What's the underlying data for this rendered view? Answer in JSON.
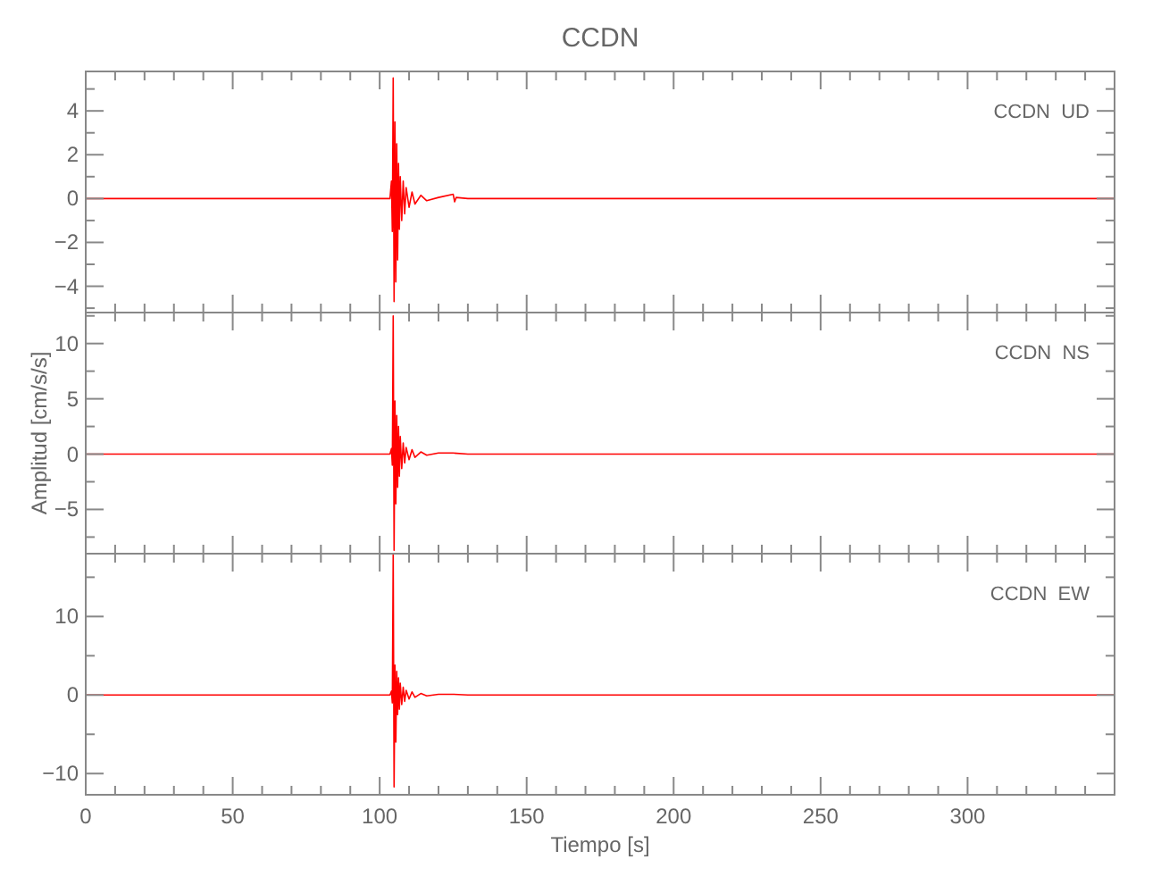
{
  "chart_data": [
    {
      "type": "line",
      "title": "CCDN",
      "annotations": [
        "CCDN  UD"
      ],
      "tick_labels": "y",
      "xlim": [
        0,
        350
      ],
      "ylim": [
        -5.2,
        5.8
      ],
      "x": [
        0,
        50,
        103.5,
        104,
        104.3,
        104.6,
        104.9,
        105.2,
        105.5,
        105.8,
        106.1,
        106.4,
        106.7,
        107,
        107.5,
        108,
        108.5,
        109,
        110,
        111,
        112,
        114,
        116,
        120,
        125,
        125.5,
        126,
        130,
        200,
        350
      ],
      "series": [
        {
          "color": "#ff0000",
          "values": [
            0,
            0,
            0,
            0.8,
            -1.5,
            5.5,
            -4.7,
            3.5,
            -3.8,
            2.5,
            -2.8,
            1.6,
            -1.4,
            1,
            -1,
            0.8,
            -0.7,
            0.5,
            -0.4,
            0.3,
            -0.25,
            0.15,
            -0.1,
            0.05,
            0.2,
            -0.15,
            0.05,
            0,
            0,
            0
          ]
        }
      ],
      "xticks": [
        0,
        {
          "value": 10,
          "label": null
        },
        {
          "value": 20,
          "label": null
        },
        {
          "value": 30,
          "label": null
        },
        {
          "value": 40,
          "label": null
        },
        50,
        {
          "value": 60,
          "label": null
        },
        {
          "value": 70,
          "label": null
        },
        {
          "value": 80,
          "label": null
        },
        {
          "value": 90,
          "label": null
        },
        100,
        {
          "value": 110,
          "label": null
        },
        {
          "value": 120,
          "label": null
        },
        {
          "value": 130,
          "label": null
        },
        {
          "value": 140,
          "label": null
        },
        150,
        {
          "value": 160,
          "label": null
        },
        {
          "value": 170,
          "label": null
        },
        {
          "value": 180,
          "label": null
        },
        {
          "value": 190,
          "label": null
        },
        200,
        {
          "value": 210,
          "label": null
        },
        {
          "value": 220,
          "label": null
        },
        {
          "value": 230,
          "label": null
        },
        {
          "value": 240,
          "label": null
        },
        250,
        {
          "value": 260,
          "label": null
        },
        {
          "value": 270,
          "label": null
        },
        {
          "value": 280,
          "label": null
        },
        {
          "value": 290,
          "label": null
        },
        300,
        {
          "value": 310,
          "label": null
        },
        {
          "value": 320,
          "label": null
        },
        {
          "value": 330,
          "label": null
        },
        {
          "value": 340,
          "label": null
        }
      ],
      "yticks": [
        {
          "value": -5,
          "label": null
        },
        {
          "value": -4,
          "label": "−4"
        },
        {
          "value": -3,
          "label": null
        },
        {
          "value": -2,
          "label": "−2"
        },
        {
          "value": -1,
          "label": null
        },
        0,
        {
          "value": 1,
          "label": null
        },
        2,
        {
          "value": 3,
          "label": null
        },
        4,
        {
          "value": 5,
          "label": null
        }
      ]
    },
    {
      "type": "line",
      "ylabel": "Amplitud [cm/s/s]",
      "annotations": [
        "CCDN  NS"
      ],
      "tick_labels": "y",
      "xlim": [
        0,
        350
      ],
      "ylim": [
        -9,
        12.8
      ],
      "x": [
        0,
        50,
        103.5,
        104,
        104.3,
        104.6,
        104.9,
        105.2,
        105.5,
        105.8,
        106.1,
        106.4,
        106.7,
        107,
        107.5,
        108,
        108.5,
        109,
        110,
        111,
        112,
        114,
        116,
        120,
        125,
        130,
        200,
        350
      ],
      "series": [
        {
          "color": "#ff0000",
          "values": [
            0,
            0,
            0,
            0.5,
            -1,
            12.5,
            -8.7,
            4.8,
            -4.5,
            3.5,
            -3,
            2.5,
            -2,
            1.6,
            -1.3,
            1,
            -0.8,
            0.6,
            -0.5,
            0.4,
            -0.3,
            0.2,
            -0.1,
            0.1,
            0.1,
            0,
            0,
            0
          ]
        }
      ],
      "xticks": [
        0,
        {
          "value": 10,
          "label": null
        },
        {
          "value": 20,
          "label": null
        },
        {
          "value": 30,
          "label": null
        },
        {
          "value": 40,
          "label": null
        },
        50,
        {
          "value": 60,
          "label": null
        },
        {
          "value": 70,
          "label": null
        },
        {
          "value": 80,
          "label": null
        },
        {
          "value": 90,
          "label": null
        },
        100,
        {
          "value": 110,
          "label": null
        },
        {
          "value": 120,
          "label": null
        },
        {
          "value": 130,
          "label": null
        },
        {
          "value": 140,
          "label": null
        },
        150,
        {
          "value": 160,
          "label": null
        },
        {
          "value": 170,
          "label": null
        },
        {
          "value": 180,
          "label": null
        },
        {
          "value": 190,
          "label": null
        },
        200,
        {
          "value": 210,
          "label": null
        },
        {
          "value": 220,
          "label": null
        },
        {
          "value": 230,
          "label": null
        },
        {
          "value": 240,
          "label": null
        },
        250,
        {
          "value": 260,
          "label": null
        },
        {
          "value": 270,
          "label": null
        },
        {
          "value": 280,
          "label": null
        },
        {
          "value": 290,
          "label": null
        },
        300,
        {
          "value": 310,
          "label": null
        },
        {
          "value": 320,
          "label": null
        },
        {
          "value": 330,
          "label": null
        },
        {
          "value": 340,
          "label": null
        }
      ],
      "yticks": [
        {
          "value": -7.5,
          "label": null
        },
        {
          "value": -5,
          "label": "−5"
        },
        {
          "value": -2.5,
          "label": null
        },
        0,
        {
          "value": 2.5,
          "label": null
        },
        5,
        {
          "value": 7.5,
          "label": null
        },
        10,
        {
          "value": 12.5,
          "label": null
        }
      ]
    },
    {
      "type": "line",
      "xlabel": "Tiempo [s]",
      "annotations": [
        "CCDN  EW"
      ],
      "xlim": [
        0,
        350
      ],
      "ylim": [
        -12.7,
        18
      ],
      "x": [
        0,
        50,
        103.5,
        104,
        104.3,
        104.6,
        104.9,
        105.2,
        105.5,
        105.8,
        106.1,
        106.4,
        106.7,
        107,
        107.5,
        108,
        108.5,
        109,
        110,
        111,
        112,
        114,
        116,
        120,
        125,
        130,
        200,
        350
      ],
      "series": [
        {
          "color": "#ff0000",
          "values": [
            0,
            0,
            0,
            0.5,
            -1,
            18,
            -11.7,
            3.8,
            -6,
            3,
            -2.5,
            2.2,
            -1.8,
            1.5,
            -1.2,
            1,
            -0.8,
            0.6,
            -0.5,
            0.4,
            -0.3,
            0.2,
            -0.1,
            0.1,
            0.1,
            0,
            0,
            0
          ]
        }
      ],
      "xticks": [
        0,
        {
          "value": 10,
          "label": null
        },
        {
          "value": 20,
          "label": null
        },
        {
          "value": 30,
          "label": null
        },
        {
          "value": 40,
          "label": null
        },
        50,
        {
          "value": 60,
          "label": null
        },
        {
          "value": 70,
          "label": null
        },
        {
          "value": 80,
          "label": null
        },
        {
          "value": 90,
          "label": null
        },
        100,
        {
          "value": 110,
          "label": null
        },
        {
          "value": 120,
          "label": null
        },
        {
          "value": 130,
          "label": null
        },
        {
          "value": 140,
          "label": null
        },
        150,
        {
          "value": 160,
          "label": null
        },
        {
          "value": 170,
          "label": null
        },
        {
          "value": 180,
          "label": null
        },
        {
          "value": 190,
          "label": null
        },
        200,
        {
          "value": 210,
          "label": null
        },
        {
          "value": 220,
          "label": null
        },
        {
          "value": 230,
          "label": null
        },
        {
          "value": 240,
          "label": null
        },
        250,
        {
          "value": 260,
          "label": null
        },
        {
          "value": 270,
          "label": null
        },
        {
          "value": 280,
          "label": null
        },
        {
          "value": 290,
          "label": null
        },
        300,
        {
          "value": 310,
          "label": null
        },
        {
          "value": 320,
          "label": null
        },
        {
          "value": 330,
          "label": null
        },
        {
          "value": 340,
          "label": null
        }
      ],
      "yticks": [
        {
          "value": -10,
          "label": "−10"
        },
        {
          "value": -5,
          "label": null
        },
        0,
        {
          "value": 5,
          "label": null
        },
        10,
        {
          "value": 15,
          "label": null
        }
      ]
    }
  ]
}
